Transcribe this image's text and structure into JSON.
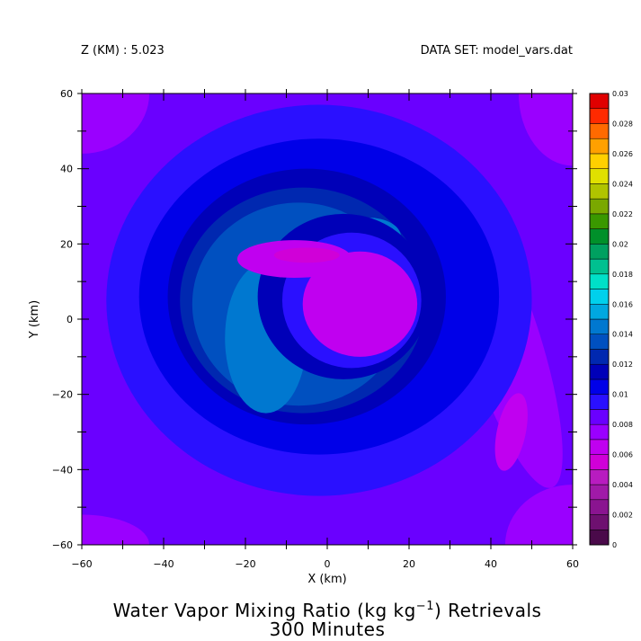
{
  "header": {
    "z_label": "Z (KM) : 5.023",
    "dataset_label": "DATA SET: model_vars.dat"
  },
  "chart_data": {
    "type": "heatmap",
    "title_line1": "Water Vapor Mixing Ratio (kg kg",
    "title_exponent": "−1",
    "title_line1_tail": ") Retrievals",
    "title_line2": "300 Minutes",
    "xlabel": "X (km)",
    "ylabel": "Y (km)",
    "xlim": [
      -60,
      60
    ],
    "ylim": [
      -60,
      60
    ],
    "x_ticks": [
      -60,
      -40,
      -20,
      0,
      20,
      40,
      60
    ],
    "y_ticks": [
      -60,
      -40,
      -20,
      0,
      20,
      40,
      60
    ],
    "x_tick_labels": [
      "−60",
      "−40",
      "−20",
      "0",
      "20",
      "40",
      "60"
    ],
    "y_tick_labels": [
      "−60",
      "−40",
      "−20",
      "0",
      "20",
      "40",
      "60"
    ],
    "colorbar": {
      "levels": [
        0,
        0.001,
        0.002,
        0.003,
        0.004,
        0.005,
        0.006,
        0.007,
        0.008,
        0.009,
        0.01,
        0.011,
        0.012,
        0.013,
        0.014,
        0.015,
        0.016,
        0.017,
        0.018,
        0.019,
        0.02,
        0.021,
        0.022,
        0.023,
        0.024,
        0.025,
        0.026,
        0.027,
        0.028,
        0.029,
        0.03
      ],
      "labels": [
        "0",
        "0.002",
        "0.004",
        "0.006",
        "0.008",
        "0.01",
        "0.012",
        "0.014",
        "0.016",
        "0.018",
        "0.02",
        "0.022",
        "0.024",
        "0.026",
        "0.028",
        "0.03"
      ],
      "colors": [
        "#4a0a4a",
        "#6e1070",
        "#8a1490",
        "#a01aa8",
        "#b81cc0",
        "#d000d8",
        "#c000f0",
        "#9a00ff",
        "#6a00ff",
        "#2a10ff",
        "#0000e8",
        "#0000b8",
        "#0028b0",
        "#0050c0",
        "#0078d0",
        "#00a8e0",
        "#00d0ec",
        "#00e0c8",
        "#00c090",
        "#00a060",
        "#00902a",
        "#3a9800",
        "#7aa800",
        "#b0c400",
        "#e0e000",
        "#ffd000",
        "#ffa000",
        "#ff6a00",
        "#ff2a00",
        "#e00000",
        "#a00000",
        "#700000"
      ]
    },
    "field_description_levels": {
      "background": 0.0085,
      "outer_ring": 0.0095,
      "ring_2": 0.0105,
      "ring_3": 0.0115,
      "ring_4": 0.0125,
      "ring_5": 0.0135,
      "max_ring": 0.0148,
      "inner_dark": 0.0095,
      "eye": 0.0068,
      "eye_center": 0.0058
    }
  }
}
